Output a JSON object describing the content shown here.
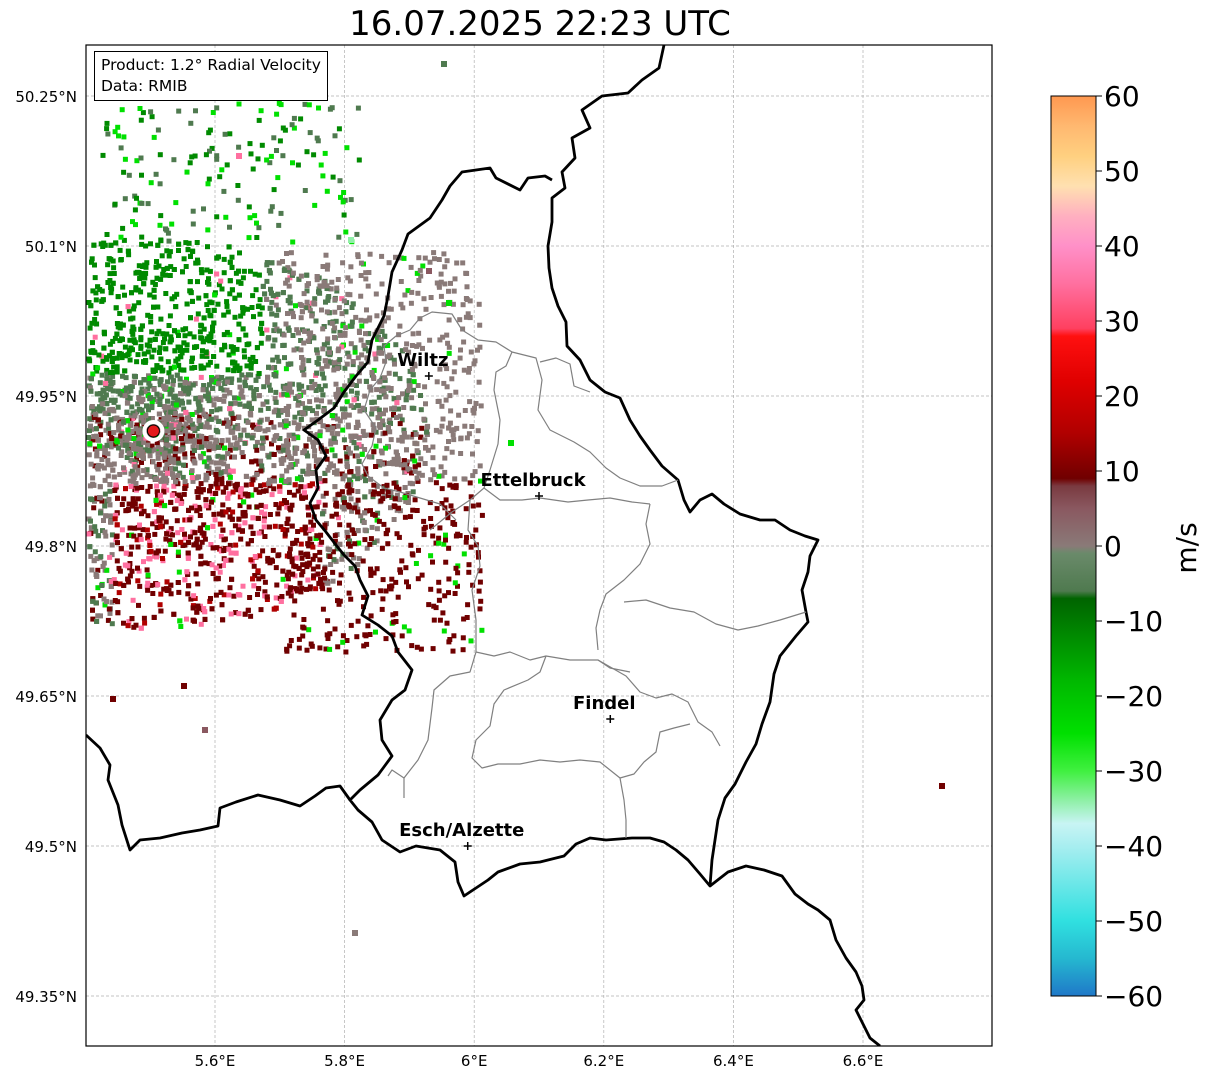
{
  "title": "16.07.2025 22:23 UTC",
  "product_box": {
    "product_line": "Product: 1.2° Radial Velocity",
    "data_line": "Data: RMIB"
  },
  "map": {
    "lon_ticks": [
      "5.6°E",
      "5.8°E",
      "6°E",
      "6.2°E",
      "6.4°E",
      "6.6°E"
    ],
    "lat_ticks": [
      "50.25°N",
      "50.1°N",
      "49.95°N",
      "49.8°N",
      "49.65°N",
      "49.5°N",
      "49.35°N"
    ],
    "cities": [
      {
        "name": "Wiltz",
        "lon": 5.93,
        "lat": 49.97
      },
      {
        "name": "Ettelbruck",
        "lon": 6.1,
        "lat": 49.85
      },
      {
        "name": "Findel",
        "lon": 6.21,
        "lat": 49.627
      },
      {
        "name": "Esch/Alzette",
        "lon": 5.99,
        "lat": 49.5
      }
    ],
    "radar_site": {
      "lon": 5.505,
      "lat": 49.915,
      "color": "#e41a1c"
    }
  },
  "colorbar": {
    "label": "m/s",
    "min": -60,
    "max": 60,
    "ticks": [
      "60",
      "50",
      "40",
      "30",
      "20",
      "10",
      "0",
      "−10",
      "−20",
      "−30",
      "−40",
      "−50",
      "−60"
    ],
    "color_stops": [
      {
        "v": -60,
        "c": "#1f78c8"
      },
      {
        "v": -55,
        "c": "#25b8d0"
      },
      {
        "v": -50,
        "c": "#30e0e0"
      },
      {
        "v": -40,
        "c": "#a8eef0"
      },
      {
        "v": -37,
        "c": "#c8f4f4"
      },
      {
        "v": -34,
        "c": "#90f0a8"
      },
      {
        "v": -30,
        "c": "#40f040"
      },
      {
        "v": -25,
        "c": "#00e000"
      },
      {
        "v": -18,
        "c": "#00b800"
      },
      {
        "v": -12,
        "c": "#008a00"
      },
      {
        "v": -7,
        "c": "#006400"
      },
      {
        "v": -6,
        "c": "#4f7a4f"
      },
      {
        "v": -1,
        "c": "#6a8a6a"
      },
      {
        "v": 0,
        "c": "#8a7a78"
      },
      {
        "v": 5,
        "c": "#8a5860"
      },
      {
        "v": 8,
        "c": "#7a3a40"
      },
      {
        "v": 9,
        "c": "#700000"
      },
      {
        "v": 15,
        "c": "#b00000"
      },
      {
        "v": 22,
        "c": "#e00000"
      },
      {
        "v": 28,
        "c": "#ff1010"
      },
      {
        "v": 29,
        "c": "#ff4060"
      },
      {
        "v": 35,
        "c": "#ff70a0"
      },
      {
        "v": 40,
        "c": "#ff90c8"
      },
      {
        "v": 44,
        "c": "#ffb0c0"
      },
      {
        "v": 48,
        "c": "#ffe0b0"
      },
      {
        "v": 52,
        "c": "#ffd080"
      },
      {
        "v": 56,
        "c": "#ffb870"
      },
      {
        "v": 60,
        "c": "#ff9850"
      }
    ]
  }
}
